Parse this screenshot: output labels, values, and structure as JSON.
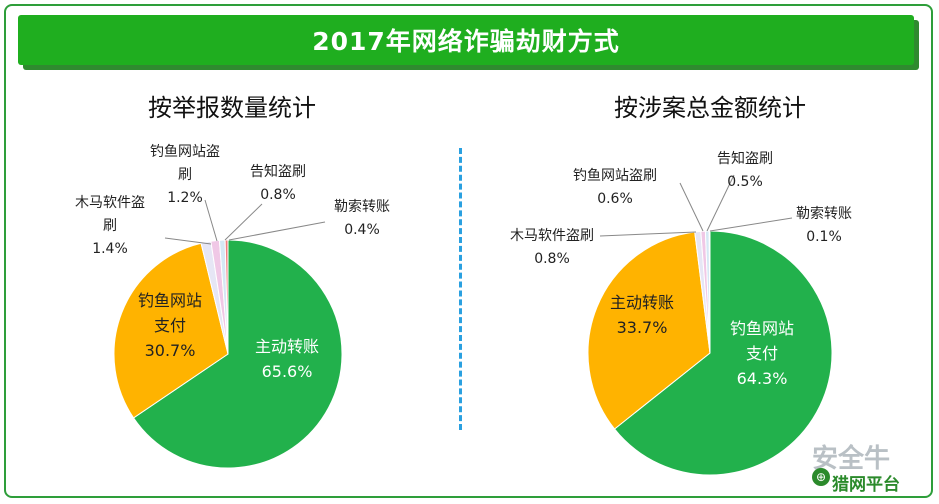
{
  "header": {
    "title": "2017年网络诈骗劫财方式"
  },
  "chart_data": [
    {
      "type": "pie",
      "title": "按举报数量统计",
      "slices": [
        {
          "label_lines": [
            "主动转账"
          ],
          "value": 65.6,
          "value_label": "65.6%",
          "color": "#22b14c"
        },
        {
          "label_lines": [
            "钓鱼网站",
            "支付"
          ],
          "value": 30.7,
          "value_label": "30.7%",
          "color": "#ffb300"
        },
        {
          "label_lines": [
            "木马软件盗",
            "刷"
          ],
          "value": 1.4,
          "value_label": "1.4%",
          "color": "#e6e6f5"
        },
        {
          "label_lines": [
            "钓鱼网站盗",
            "刷"
          ],
          "value": 1.2,
          "value_label": "1.2%",
          "color": "#f0c8e6"
        },
        {
          "label_lines": [
            "告知盗刷"
          ],
          "value": 0.8,
          "value_label": "0.8%",
          "color": "#d5e8f5"
        },
        {
          "label_lines": [
            "勒索转账"
          ],
          "value": 0.4,
          "value_label": "0.4%",
          "color": "#f08080"
        }
      ]
    },
    {
      "type": "pie",
      "title": "按涉案总金额统计",
      "slices": [
        {
          "label_lines": [
            "钓鱼网站",
            "支付"
          ],
          "value": 64.3,
          "value_label": "64.3%",
          "color": "#22b14c"
        },
        {
          "label_lines": [
            "主动转账"
          ],
          "value": 33.7,
          "value_label": "33.7%",
          "color": "#ffb300"
        },
        {
          "label_lines": [
            "木马软件盗刷"
          ],
          "value": 0.8,
          "value_label": "0.8%",
          "color": "#e6e6f5"
        },
        {
          "label_lines": [
            "钓鱼网站盗刷"
          ],
          "value": 0.6,
          "value_label": "0.6%",
          "color": "#f0c8e6"
        },
        {
          "label_lines": [
            "告知盗刷"
          ],
          "value": 0.5,
          "value_label": "0.5%",
          "color": "#d5e8f5"
        },
        {
          "label_lines": [
            "勒索转账"
          ],
          "value": 0.1,
          "value_label": "0.1%",
          "color": "#f08080"
        }
      ]
    }
  ],
  "watermark": {
    "brand": "安全牛",
    "platform": "猎网平台"
  }
}
